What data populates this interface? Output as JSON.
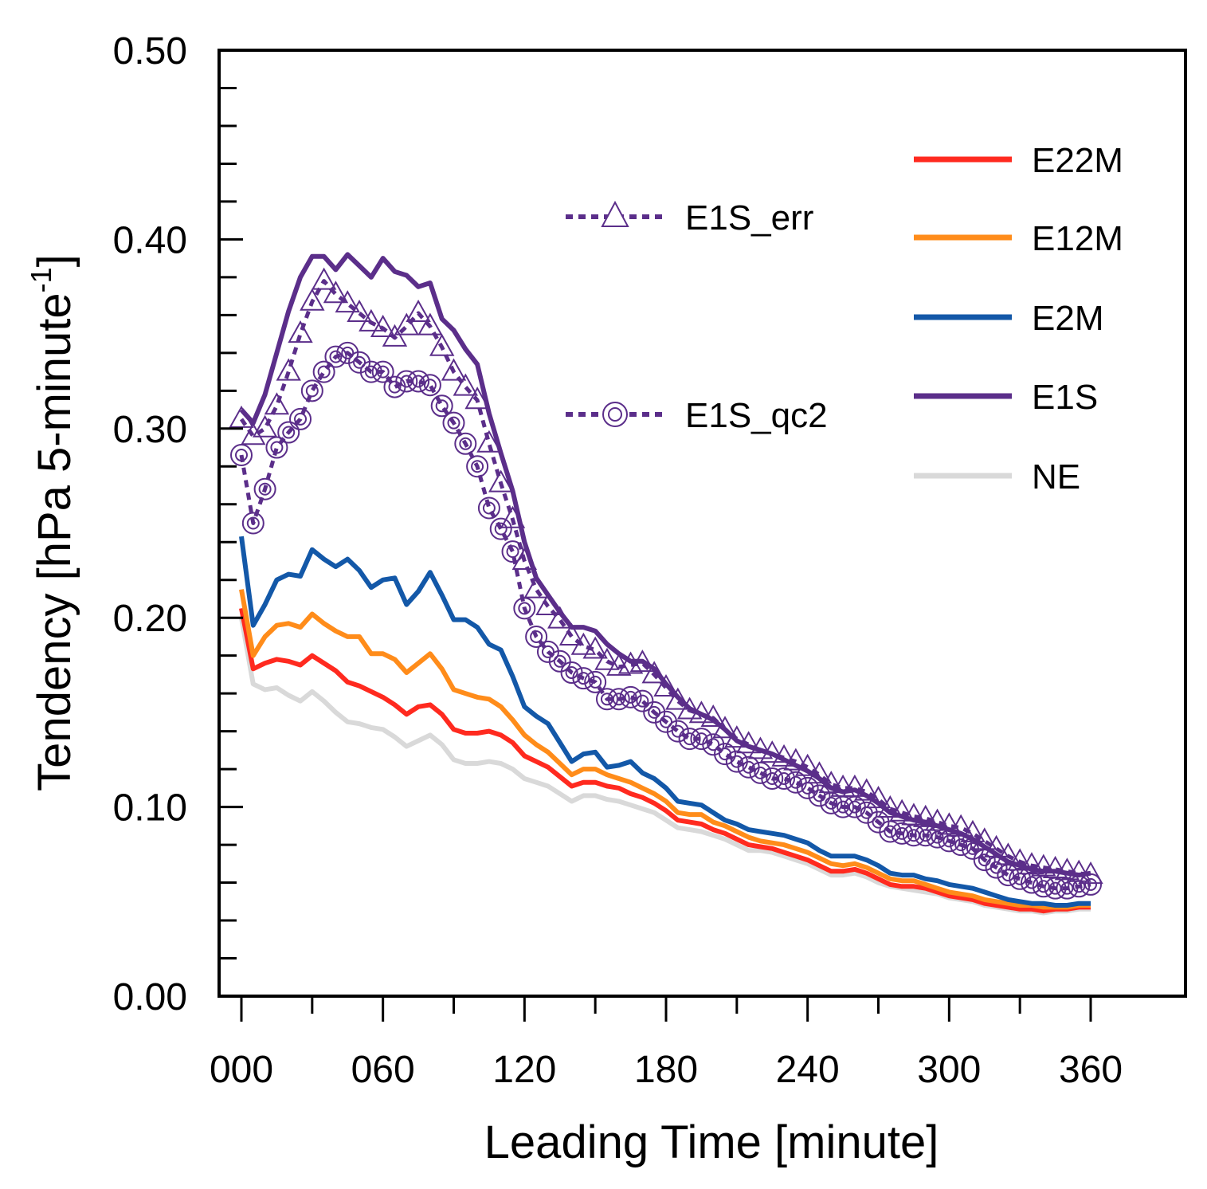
{
  "chart_data": {
    "type": "line",
    "xlabel": "Leading Time [minute]",
    "ylabel_main": "Tendency [hPa 5-minute",
    "ylabel_sup": "-1",
    "ylabel_close": "]",
    "xlim": [
      0,
      390
    ],
    "ylim": [
      0,
      0.5
    ],
    "x_ticks": [
      0,
      60,
      120,
      180,
      240,
      300,
      360
    ],
    "x_tick_labels": [
      "000",
      "060",
      "120",
      "180",
      "240",
      "300",
      "360"
    ],
    "y_ticks": [
      0,
      0.1,
      0.2,
      0.3,
      0.4,
      0.5
    ],
    "y_tick_labels": [
      "0.00",
      "0.10",
      "0.20",
      "0.30",
      "0.40",
      "0.50"
    ],
    "x": [
      0,
      5,
      10,
      15,
      20,
      25,
      30,
      35,
      40,
      45,
      50,
      55,
      60,
      65,
      70,
      75,
      80,
      85,
      90,
      95,
      100,
      105,
      110,
      115,
      120,
      125,
      130,
      135,
      140,
      145,
      150,
      155,
      160,
      165,
      170,
      175,
      180,
      185,
      190,
      195,
      200,
      205,
      210,
      215,
      220,
      225,
      230,
      235,
      240,
      245,
      250,
      255,
      260,
      265,
      270,
      275,
      280,
      285,
      290,
      295,
      300,
      305,
      310,
      315,
      320,
      325,
      330,
      335,
      340,
      345,
      350,
      355,
      360
    ],
    "series": [
      {
        "name": "E22M",
        "color": "#ff2a1f",
        "style": "solid",
        "marker": "none",
        "values": [
          0.205,
          0.173,
          0.176,
          0.178,
          0.177,
          0.175,
          0.18,
          0.176,
          0.172,
          0.166,
          0.164,
          0.161,
          0.158,
          0.154,
          0.149,
          0.153,
          0.154,
          0.149,
          0.141,
          0.139,
          0.139,
          0.14,
          0.138,
          0.134,
          0.127,
          0.124,
          0.121,
          0.116,
          0.111,
          0.113,
          0.113,
          0.111,
          0.11,
          0.107,
          0.105,
          0.102,
          0.098,
          0.093,
          0.092,
          0.091,
          0.088,
          0.086,
          0.083,
          0.08,
          0.079,
          0.078,
          0.076,
          0.074,
          0.072,
          0.069,
          0.066,
          0.066,
          0.067,
          0.065,
          0.062,
          0.059,
          0.058,
          0.058,
          0.057,
          0.055,
          0.053,
          0.052,
          0.051,
          0.049,
          0.048,
          0.047,
          0.046,
          0.046,
          0.045,
          0.046,
          0.046,
          0.047,
          0.047
        ]
      },
      {
        "name": "E12M",
        "color": "#ff8c1a",
        "style": "solid",
        "marker": "none",
        "values": [
          0.215,
          0.18,
          0.19,
          0.196,
          0.197,
          0.195,
          0.202,
          0.197,
          0.193,
          0.19,
          0.19,
          0.181,
          0.181,
          0.178,
          0.171,
          0.176,
          0.181,
          0.173,
          0.162,
          0.16,
          0.158,
          0.157,
          0.153,
          0.146,
          0.138,
          0.133,
          0.129,
          0.123,
          0.117,
          0.12,
          0.12,
          0.117,
          0.115,
          0.113,
          0.11,
          0.107,
          0.103,
          0.097,
          0.096,
          0.096,
          0.092,
          0.09,
          0.087,
          0.084,
          0.082,
          0.081,
          0.08,
          0.078,
          0.076,
          0.073,
          0.07,
          0.069,
          0.07,
          0.068,
          0.065,
          0.062,
          0.061,
          0.061,
          0.059,
          0.057,
          0.055,
          0.054,
          0.053,
          0.051,
          0.05,
          0.049,
          0.048,
          0.048,
          0.047,
          0.047,
          0.047,
          0.048,
          0.048
        ]
      },
      {
        "name": "E2M",
        "color": "#1358a8",
        "style": "solid",
        "marker": "none",
        "values": [
          0.243,
          0.196,
          0.207,
          0.22,
          0.223,
          0.222,
          0.236,
          0.231,
          0.227,
          0.231,
          0.225,
          0.216,
          0.22,
          0.221,
          0.207,
          0.214,
          0.224,
          0.212,
          0.199,
          0.199,
          0.195,
          0.186,
          0.183,
          0.169,
          0.153,
          0.148,
          0.144,
          0.134,
          0.124,
          0.128,
          0.129,
          0.121,
          0.122,
          0.124,
          0.118,
          0.115,
          0.11,
          0.103,
          0.102,
          0.101,
          0.097,
          0.093,
          0.091,
          0.088,
          0.087,
          0.086,
          0.085,
          0.083,
          0.081,
          0.077,
          0.074,
          0.074,
          0.074,
          0.072,
          0.069,
          0.065,
          0.064,
          0.064,
          0.062,
          0.061,
          0.059,
          0.058,
          0.057,
          0.055,
          0.053,
          0.051,
          0.05,
          0.049,
          0.049,
          0.048,
          0.048,
          0.049,
          0.049
        ]
      },
      {
        "name": "E1S",
        "color": "#5b2e8a",
        "style": "solid",
        "marker": "none",
        "values": [
          0.31,
          0.303,
          0.318,
          0.34,
          0.362,
          0.38,
          0.391,
          0.391,
          0.384,
          0.392,
          0.386,
          0.38,
          0.39,
          0.383,
          0.381,
          0.375,
          0.377,
          0.358,
          0.352,
          0.342,
          0.334,
          0.308,
          0.287,
          0.267,
          0.24,
          0.221,
          0.212,
          0.203,
          0.195,
          0.195,
          0.193,
          0.186,
          0.181,
          0.177,
          0.177,
          0.173,
          0.165,
          0.158,
          0.152,
          0.149,
          0.146,
          0.141,
          0.135,
          0.132,
          0.13,
          0.128,
          0.125,
          0.122,
          0.119,
          0.115,
          0.11,
          0.108,
          0.109,
          0.106,
          0.102,
          0.097,
          0.095,
          0.093,
          0.092,
          0.09,
          0.088,
          0.086,
          0.083,
          0.079,
          0.075,
          0.071,
          0.069,
          0.067,
          0.066,
          0.066,
          0.065,
          0.064,
          0.065
        ]
      },
      {
        "name": "NE",
        "color": "#d9d9d9",
        "style": "solid",
        "marker": "none",
        "values": [
          0.2,
          0.165,
          0.162,
          0.163,
          0.159,
          0.156,
          0.161,
          0.156,
          0.15,
          0.145,
          0.144,
          0.142,
          0.141,
          0.137,
          0.132,
          0.135,
          0.138,
          0.133,
          0.125,
          0.123,
          0.123,
          0.124,
          0.123,
          0.12,
          0.115,
          0.113,
          0.111,
          0.107,
          0.103,
          0.106,
          0.106,
          0.104,
          0.103,
          0.101,
          0.099,
          0.097,
          0.093,
          0.089,
          0.088,
          0.087,
          0.085,
          0.083,
          0.08,
          0.077,
          0.077,
          0.076,
          0.074,
          0.072,
          0.07,
          0.067,
          0.064,
          0.064,
          0.065,
          0.063,
          0.06,
          0.058,
          0.057,
          0.056,
          0.055,
          0.054,
          0.052,
          0.051,
          0.05,
          0.048,
          0.047,
          0.046,
          0.045,
          0.045,
          0.044,
          0.045,
          0.045,
          0.046,
          0.046
        ]
      },
      {
        "name": "E1S_err",
        "color": "#5b2e8a",
        "style": "dashed",
        "marker": "triangle",
        "values": [
          0.305,
          0.296,
          0.3,
          0.312,
          0.33,
          0.35,
          0.367,
          0.378,
          0.371,
          0.366,
          0.361,
          0.356,
          0.353,
          0.348,
          0.354,
          0.361,
          0.354,
          0.343,
          0.33,
          0.322,
          0.315,
          0.292,
          0.271,
          0.252,
          0.23,
          0.215,
          0.206,
          0.199,
          0.19,
          0.185,
          0.183,
          0.177,
          0.174,
          0.175,
          0.176,
          0.17,
          0.163,
          0.156,
          0.151,
          0.149,
          0.147,
          0.141,
          0.136,
          0.133,
          0.13,
          0.128,
          0.126,
          0.124,
          0.121,
          0.117,
          0.112,
          0.11,
          0.11,
          0.108,
          0.104,
          0.099,
          0.097,
          0.095,
          0.094,
          0.092,
          0.09,
          0.089,
          0.086,
          0.082,
          0.078,
          0.074,
          0.071,
          0.069,
          0.068,
          0.067,
          0.066,
          0.065,
          0.064
        ]
      },
      {
        "name": "E1S_qc2",
        "color": "#5b2e8a",
        "style": "dashed",
        "marker": "circle",
        "values": [
          0.286,
          0.25,
          0.268,
          0.29,
          0.298,
          0.305,
          0.32,
          0.33,
          0.338,
          0.34,
          0.335,
          0.33,
          0.33,
          0.322,
          0.325,
          0.325,
          0.323,
          0.312,
          0.303,
          0.292,
          0.28,
          0.258,
          0.247,
          0.235,
          0.205,
          0.19,
          0.182,
          0.177,
          0.171,
          0.168,
          0.166,
          0.157,
          0.157,
          0.158,
          0.156,
          0.15,
          0.145,
          0.14,
          0.136,
          0.136,
          0.133,
          0.128,
          0.124,
          0.121,
          0.118,
          0.115,
          0.115,
          0.113,
          0.11,
          0.106,
          0.102,
          0.1,
          0.1,
          0.097,
          0.092,
          0.087,
          0.086,
          0.085,
          0.085,
          0.084,
          0.082,
          0.08,
          0.078,
          0.072,
          0.068,
          0.064,
          0.062,
          0.06,
          0.058,
          0.057,
          0.057,
          0.058,
          0.059
        ]
      }
    ],
    "legend_right": [
      "E22M",
      "E12M",
      "E2M",
      "E1S",
      "NE"
    ],
    "legend_middle": [
      "E1S_err",
      "E1S_qc2"
    ]
  }
}
